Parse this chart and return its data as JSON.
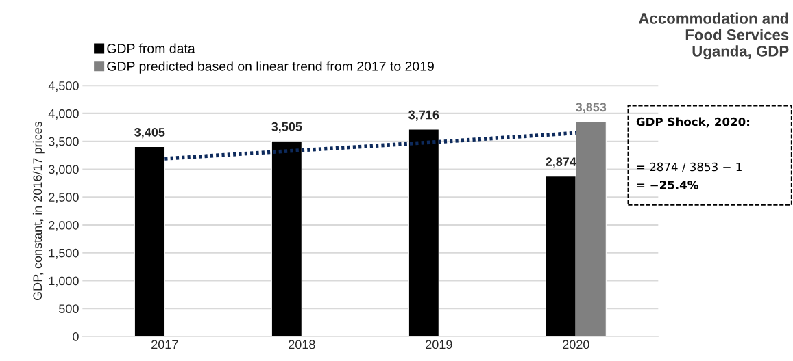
{
  "chart_data": {
    "type": "bar",
    "title": "Accommodation and\nFood Services\nUganda, GDP",
    "ylabel": "GDP, constant, in 2016/17 prices",
    "categories": [
      "2017",
      "2018",
      "2019",
      "2020"
    ],
    "series": [
      {
        "name": "GDP from data",
        "color": "#000000",
        "values": [
          3405,
          3505,
          3716,
          2874
        ],
        "value_labels": [
          "3,405",
          "3,505",
          "3,716",
          "2,874"
        ]
      },
      {
        "name": "GDP predicted based on linear trend from 2017 to 2019",
        "color": "#808080",
        "values": [
          null,
          null,
          null,
          3853
        ],
        "value_labels": [
          null,
          null,
          null,
          "3,853"
        ]
      },
      {
        "type": "line",
        "color": "#0d2a5c",
        "line_style": "dotted",
        "values": [
          3190,
          3340,
          3490,
          3650
        ]
      }
    ],
    "ylim": [
      0,
      4500
    ],
    "yticks": [
      {
        "value": 0,
        "label": "0"
      },
      {
        "value": 500,
        "label": "500"
      },
      {
        "value": 1000,
        "label": "1,000"
      },
      {
        "value": 1500,
        "label": "1,500"
      },
      {
        "value": 2000,
        "label": "2,000"
      },
      {
        "value": 2500,
        "label": "2,500"
      },
      {
        "value": 3000,
        "label": "3,000"
      },
      {
        "value": 3500,
        "label": "3,500"
      },
      {
        "value": 4000,
        "label": "4,000"
      },
      {
        "value": 4500,
        "label": "4,500"
      }
    ],
    "grid": "y",
    "legend": "top left",
    "annotations": [
      "GDP Shock, 2020:",
      "= 2874 / 3853 − 1",
      "= −25.4%"
    ]
  }
}
